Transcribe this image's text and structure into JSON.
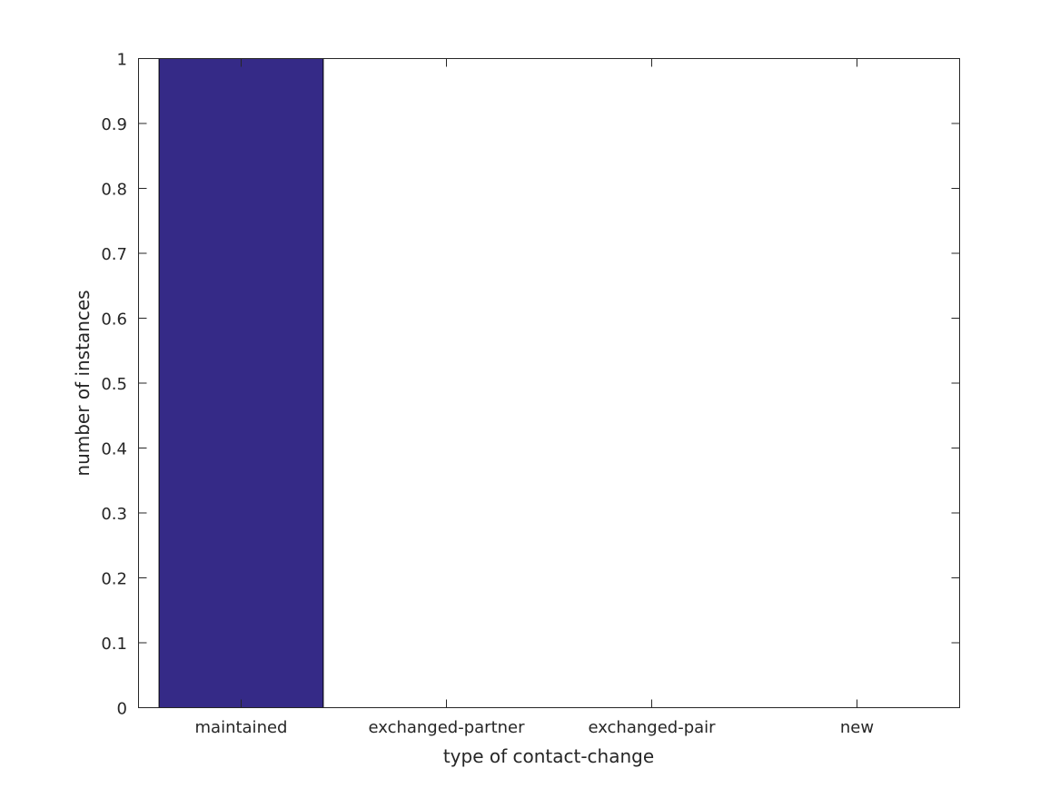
{
  "chart_data": {
    "type": "bar",
    "categories": [
      "maintained",
      "exchanged-partner",
      "exchanged-pair",
      "new"
    ],
    "values": [
      1,
      0,
      0,
      0
    ],
    "title": "",
    "xlabel": "type of contact-change",
    "ylabel": "number of instances",
    "ylim": [
      0,
      1
    ],
    "yticks": [
      "0",
      "0.1",
      "0.2",
      "0.3",
      "0.4",
      "0.5",
      "0.6",
      "0.7",
      "0.8",
      "0.9",
      "1"
    ],
    "grid": false,
    "bar_color": "#352a87"
  }
}
